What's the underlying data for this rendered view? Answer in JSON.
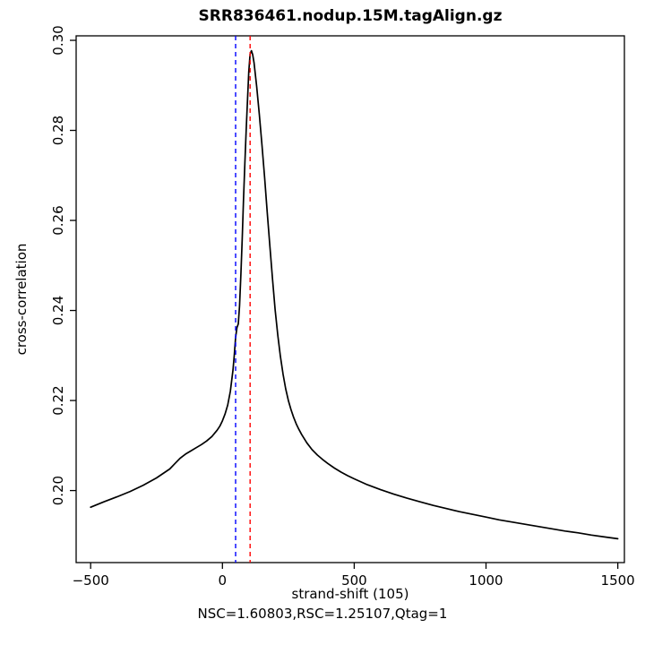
{
  "chart_data": {
    "type": "line",
    "title": "SRR836461.nodup.15M.tagAlign.gz",
    "xlabel": "strand-shift (105)",
    "ylabel": "cross-correlation",
    "subtitle": "NSC=1.60803,RSC=1.25107,Qtag=1",
    "xlim": [
      -555,
      1525
    ],
    "ylim": [
      0.184,
      0.301
    ],
    "grid": false,
    "x_ticks": [
      -500,
      0,
      500,
      1000,
      1500
    ],
    "x_tick_labels": [
      "−500",
      "0",
      "500",
      "1000",
      "1500"
    ],
    "y_ticks": [
      0.2,
      0.22,
      0.24,
      0.26,
      0.28,
      0.3
    ],
    "y_tick_labels": [
      "0.20",
      "0.22",
      "0.24",
      "0.26",
      "0.28",
      "0.30"
    ],
    "line_color": "#000000",
    "vlines": [
      {
        "x": 50,
        "color": "#0000ff",
        "style": "dashed"
      },
      {
        "x": 105,
        "color": "#ff0000",
        "style": "dashed"
      }
    ],
    "series": [
      {
        "name": "cross-correlation",
        "x": [
          -500,
          -450,
          -400,
          -350,
          -300,
          -250,
          -200,
          -180,
          -160,
          -140,
          -120,
          -100,
          -80,
          -60,
          -40,
          -20,
          -10,
          0,
          10,
          20,
          30,
          40,
          45,
          50,
          55,
          60,
          65,
          70,
          75,
          80,
          85,
          90,
          95,
          100,
          105,
          110,
          115,
          120,
          130,
          140,
          150,
          160,
          170,
          180,
          190,
          200,
          210,
          220,
          230,
          240,
          250,
          260,
          270,
          280,
          290,
          300,
          320,
          340,
          360,
          380,
          400,
          425,
          450,
          475,
          500,
          550,
          600,
          650,
          700,
          750,
          800,
          850,
          900,
          950,
          1000,
          1050,
          1100,
          1150,
          1200,
          1250,
          1300,
          1350,
          1400,
          1450,
          1500
        ],
        "y": [
          0.1963,
          0.1975,
          0.1986,
          0.1998,
          0.2012,
          0.2028,
          0.2048,
          0.206,
          0.2072,
          0.2081,
          0.2088,
          0.2095,
          0.2102,
          0.211,
          0.212,
          0.2134,
          0.2143,
          0.2155,
          0.217,
          0.219,
          0.222,
          0.2268,
          0.23,
          0.234,
          0.2362,
          0.237,
          0.241,
          0.248,
          0.256,
          0.2645,
          0.2725,
          0.28,
          0.2868,
          0.293,
          0.297,
          0.2977,
          0.2968,
          0.295,
          0.2898,
          0.2835,
          0.2768,
          0.2695,
          0.2618,
          0.2542,
          0.247,
          0.2402,
          0.2345,
          0.2298,
          0.2258,
          0.2226,
          0.22,
          0.218,
          0.2163,
          0.2148,
          0.2136,
          0.2125,
          0.2106,
          0.2091,
          0.2079,
          0.2069,
          0.206,
          0.205,
          0.2041,
          0.2033,
          0.2026,
          0.2013,
          0.2002,
          0.1992,
          0.1983,
          0.1975,
          0.1967,
          0.196,
          0.1953,
          0.1947,
          0.1941,
          0.1935,
          0.193,
          0.1925,
          0.192,
          0.1915,
          0.191,
          0.1906,
          0.1901,
          0.1897,
          0.1893
        ]
      }
    ]
  }
}
